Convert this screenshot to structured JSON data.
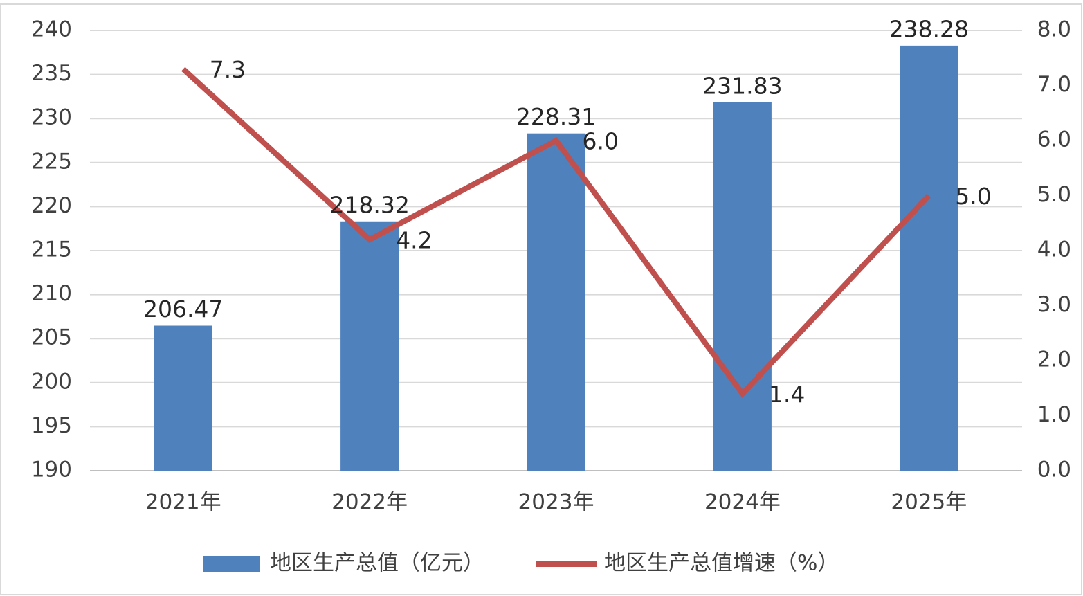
{
  "chart_data": {
    "type": "bar-line",
    "categories": [
      "2021年",
      "2022年",
      "2023年",
      "2024年",
      "2025年"
    ],
    "series": [
      {
        "name": "地区生产总值（亿元）",
        "type": "bar",
        "color": "#4f81bd",
        "values": [
          206.47,
          218.32,
          228.31,
          231.83,
          238.28
        ]
      },
      {
        "name": "地区生产总值增速（%）",
        "type": "line",
        "color": "#c0504d",
        "axis": "y2",
        "values": [
          7.3,
          4.2,
          6.0,
          1.4,
          5.0
        ],
        "value_labels": [
          "7.3",
          "4.2",
          "6.0",
          "1.4",
          "5.0"
        ]
      }
    ],
    "ylim": [
      190,
      240
    ],
    "yticks": [
      190,
      195,
      200,
      205,
      210,
      215,
      220,
      225,
      230,
      235,
      240
    ],
    "y2lim": [
      0,
      8
    ],
    "y2ticks": [
      {
        "value": 0,
        "label": "0.0"
      },
      {
        "value": 1,
        "label": "1.0"
      },
      {
        "value": 2,
        "label": "2.0"
      },
      {
        "value": 3,
        "label": "3.0"
      },
      {
        "value": 4,
        "label": "4.0"
      },
      {
        "value": 5,
        "label": "5.0"
      },
      {
        "value": 6,
        "label": "6.0"
      },
      {
        "value": 7,
        "label": "7.0"
      },
      {
        "value": 8,
        "label": "8.0"
      }
    ],
    "grid": true,
    "legend": "bottom"
  }
}
